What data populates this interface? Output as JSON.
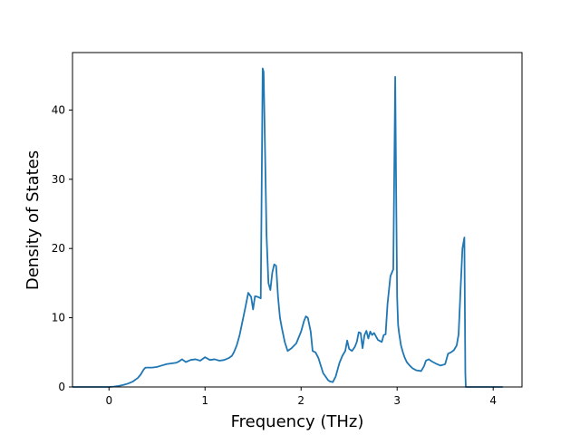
{
  "chart_data": {
    "type": "line",
    "title": "",
    "xlabel": "Frequency (THz)",
    "ylabel": "Density of States",
    "xlim": [
      -0.38,
      4.3
    ],
    "ylim": [
      0,
      48.3
    ],
    "xticks": [
      0,
      1,
      2,
      3,
      4
    ],
    "yticks": [
      0,
      10,
      20,
      30,
      40
    ],
    "grid": false,
    "legend": "none",
    "series": [
      {
        "color": "#1f77b4",
        "x": [
          -0.38,
          -0.3,
          -0.2,
          -0.1,
          0.0,
          0.05,
          0.1,
          0.15,
          0.2,
          0.25,
          0.3,
          0.33,
          0.36,
          0.38,
          0.4,
          0.42,
          0.45,
          0.5,
          0.55,
          0.6,
          0.65,
          0.7,
          0.73,
          0.76,
          0.8,
          0.85,
          0.9,
          0.95,
          1.0,
          1.05,
          1.1,
          1.15,
          1.2,
          1.25,
          1.28,
          1.3,
          1.33,
          1.36,
          1.39,
          1.42,
          1.45,
          1.48,
          1.5,
          1.52,
          1.55,
          1.58,
          1.6,
          1.61,
          1.63,
          1.64,
          1.66,
          1.68,
          1.7,
          1.72,
          1.74,
          1.76,
          1.78,
          1.8,
          1.83,
          1.86,
          1.9,
          1.95,
          2.0,
          2.03,
          2.05,
          2.07,
          2.1,
          2.12,
          2.15,
          2.18,
          2.2,
          2.23,
          2.26,
          2.28,
          2.3,
          2.33,
          2.36,
          2.38,
          2.4,
          2.43,
          2.46,
          2.48,
          2.5,
          2.53,
          2.56,
          2.58,
          2.6,
          2.62,
          2.64,
          2.66,
          2.68,
          2.7,
          2.72,
          2.74,
          2.76,
          2.8,
          2.84,
          2.86,
          2.88,
          2.9,
          2.93,
          2.96,
          2.98,
          2.99,
          3.0,
          3.01,
          3.02,
          3.04,
          3.06,
          3.08,
          3.1,
          3.13,
          3.16,
          3.2,
          3.25,
          3.28,
          3.3,
          3.33,
          3.36,
          3.4,
          3.45,
          3.48,
          3.5,
          3.53,
          3.56,
          3.59,
          3.62,
          3.64,
          3.66,
          3.68,
          3.7,
          3.71,
          3.715,
          3.72,
          3.8,
          3.9,
          4.0,
          4.1
        ],
        "y": [
          0,
          0,
          0,
          0,
          0,
          0.05,
          0.15,
          0.3,
          0.5,
          0.8,
          1.3,
          1.8,
          2.5,
          2.8,
          2.8,
          2.8,
          2.8,
          2.9,
          3.1,
          3.3,
          3.4,
          3.5,
          3.7,
          4.0,
          3.6,
          3.9,
          4.0,
          3.8,
          4.3,
          3.9,
          4.0,
          3.8,
          3.9,
          4.2,
          4.5,
          5.0,
          6.0,
          7.5,
          9.5,
          11.5,
          13.6,
          13.0,
          11.2,
          13.1,
          13.0,
          12.8,
          46.0,
          45.5,
          30.0,
          22.0,
          15.0,
          14.0,
          16.5,
          17.7,
          17.5,
          13.0,
          10.0,
          8.5,
          6.5,
          5.2,
          5.6,
          6.3,
          8.0,
          9.5,
          10.2,
          10.0,
          8.0,
          5.2,
          5.0,
          4.2,
          3.3,
          2.0,
          1.4,
          1.0,
          0.8,
          0.7,
          1.5,
          2.5,
          3.5,
          4.5,
          5.2,
          6.7,
          5.5,
          5.2,
          5.8,
          6.5,
          7.9,
          7.8,
          5.6,
          7.5,
          8.1,
          7.0,
          8.0,
          7.5,
          7.8,
          6.8,
          6.5,
          7.5,
          7.6,
          12.0,
          16.0,
          17.0,
          44.8,
          28.0,
          13.0,
          9.0,
          7.8,
          6.0,
          5.0,
          4.2,
          3.6,
          3.1,
          2.7,
          2.4,
          2.3,
          3.0,
          3.8,
          4.0,
          3.7,
          3.4,
          3.1,
          3.2,
          3.3,
          4.8,
          5.0,
          5.3,
          6.0,
          7.6,
          14.0,
          20.0,
          21.6,
          2.0,
          0,
          0,
          0,
          0,
          0,
          0
        ]
      }
    ]
  }
}
